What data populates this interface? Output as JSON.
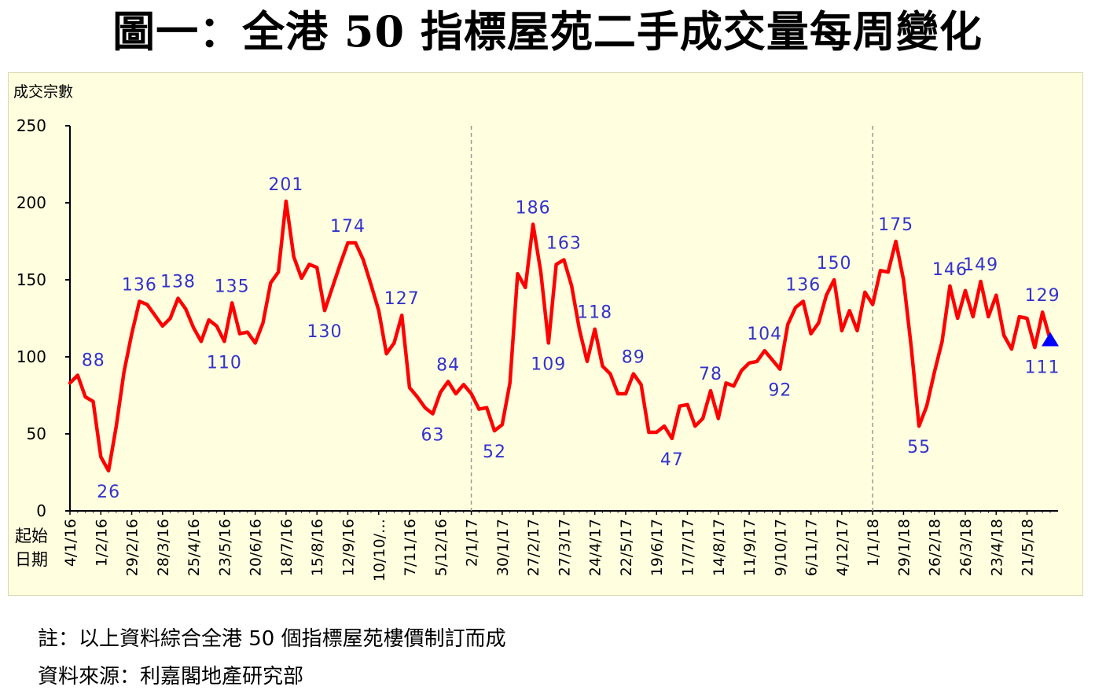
{
  "title": "圖一：全港 50 指標屋苑二手成交量每周變化",
  "notes": [
    "註：以上資料綜合全港 50 個指標屋苑樓價制訂而成",
    "資料來源：利嘉閣地產研究部"
  ],
  "colors": {
    "line": "#ff0000",
    "labels": "#3333cc",
    "marker": "#0000ff",
    "background": "#ffffe0"
  },
  "chart_data": {
    "type": "line",
    "title": "圖一：全港 50 指標屋苑二手成交量每周變化",
    "ylabel": "成交宗數",
    "xlabel": "起始日期",
    "ylim": [
      0,
      250
    ],
    "yticks": [
      0,
      50,
      100,
      150,
      200,
      250
    ],
    "grid": false,
    "x_tick_labels": [
      "4/1/16",
      "1/2/16",
      "29/2/16",
      "28/3/16",
      "25/4/16",
      "23/5/16",
      "20/6/16",
      "18/7/16",
      "15/8/16",
      "12/9/16",
      "10/10/…",
      "7/11/16",
      "5/12/16",
      "2/1/17",
      "30/1/17",
      "27/2/17",
      "27/3/17",
      "24/4/17",
      "22/5/17",
      "19/6/17",
      "17/7/17",
      "14/8/17",
      "11/9/17",
      "9/10/17",
      "6/11/17",
      "4/12/17",
      "1/1/18",
      "29/1/18",
      "26/2/18",
      "26/3/18",
      "23/4/18",
      "21/5/18"
    ],
    "year_dividers": [
      "2/1/17",
      "1/1/18"
    ],
    "series": [
      {
        "values": [
          83,
          88,
          74,
          71,
          35,
          26,
          55,
          90,
          115,
          136,
          134,
          127,
          120,
          125,
          138,
          131,
          119,
          110,
          124,
          120,
          110,
          135,
          115,
          116,
          109,
          122,
          148,
          155,
          201,
          165,
          151,
          160,
          158,
          130,
          145,
          160,
          174,
          174,
          163,
          147,
          130,
          102,
          109,
          127,
          80,
          74,
          67,
          63,
          77,
          84,
          76,
          82,
          76,
          66,
          67,
          52,
          56,
          83,
          154,
          145,
          186,
          155,
          109,
          160,
          163,
          146,
          118,
          97,
          118,
          94,
          89,
          76,
          76,
          89,
          82,
          51,
          51,
          55,
          47,
          68,
          69,
          55,
          60,
          78,
          60,
          83,
          81,
          91,
          96,
          97,
          104,
          98,
          92,
          121,
          132,
          136,
          115,
          122,
          140,
          150,
          117,
          130,
          117,
          142,
          134,
          156,
          155,
          175,
          150,
          106,
          55,
          68,
          90,
          110,
          146,
          125,
          143,
          126,
          149,
          126,
          140,
          114,
          105,
          126,
          125,
          106,
          129,
          111
        ],
        "last_point_marker": "triangle"
      }
    ],
    "data_labels": [
      {
        "x_index": 1,
        "value": 88
      },
      {
        "x_index": 5,
        "value": 26
      },
      {
        "x_index": 9,
        "value": 136
      },
      {
        "x_index": 14,
        "value": 138
      },
      {
        "x_index": 20,
        "value": 110
      },
      {
        "x_index": 21,
        "value": 135
      },
      {
        "x_index": 28,
        "value": 201
      },
      {
        "x_index": 33,
        "value": 130
      },
      {
        "x_index": 36,
        "value": 174
      },
      {
        "x_index": 43,
        "value": 127
      },
      {
        "x_index": 47,
        "value": 63
      },
      {
        "x_index": 49,
        "value": 84
      },
      {
        "x_index": 55,
        "value": 52
      },
      {
        "x_index": 60,
        "value": 186
      },
      {
        "x_index": 62,
        "value": 109
      },
      {
        "x_index": 64,
        "value": 163
      },
      {
        "x_index": 68,
        "value": 118
      },
      {
        "x_index": 73,
        "value": 89
      },
      {
        "x_index": 78,
        "value": 47
      },
      {
        "x_index": 83,
        "value": 78
      },
      {
        "x_index": 90,
        "value": 104
      },
      {
        "x_index": 92,
        "value": 92
      },
      {
        "x_index": 95,
        "value": 136
      },
      {
        "x_index": 99,
        "value": 150
      },
      {
        "x_index": 107,
        "value": 175
      },
      {
        "x_index": 110,
        "value": 55
      },
      {
        "x_index": 114,
        "value": 146
      },
      {
        "x_index": 118,
        "value": 149
      },
      {
        "x_index": 126,
        "value": 129
      },
      {
        "x_index": 127,
        "value": 111
      }
    ]
  }
}
